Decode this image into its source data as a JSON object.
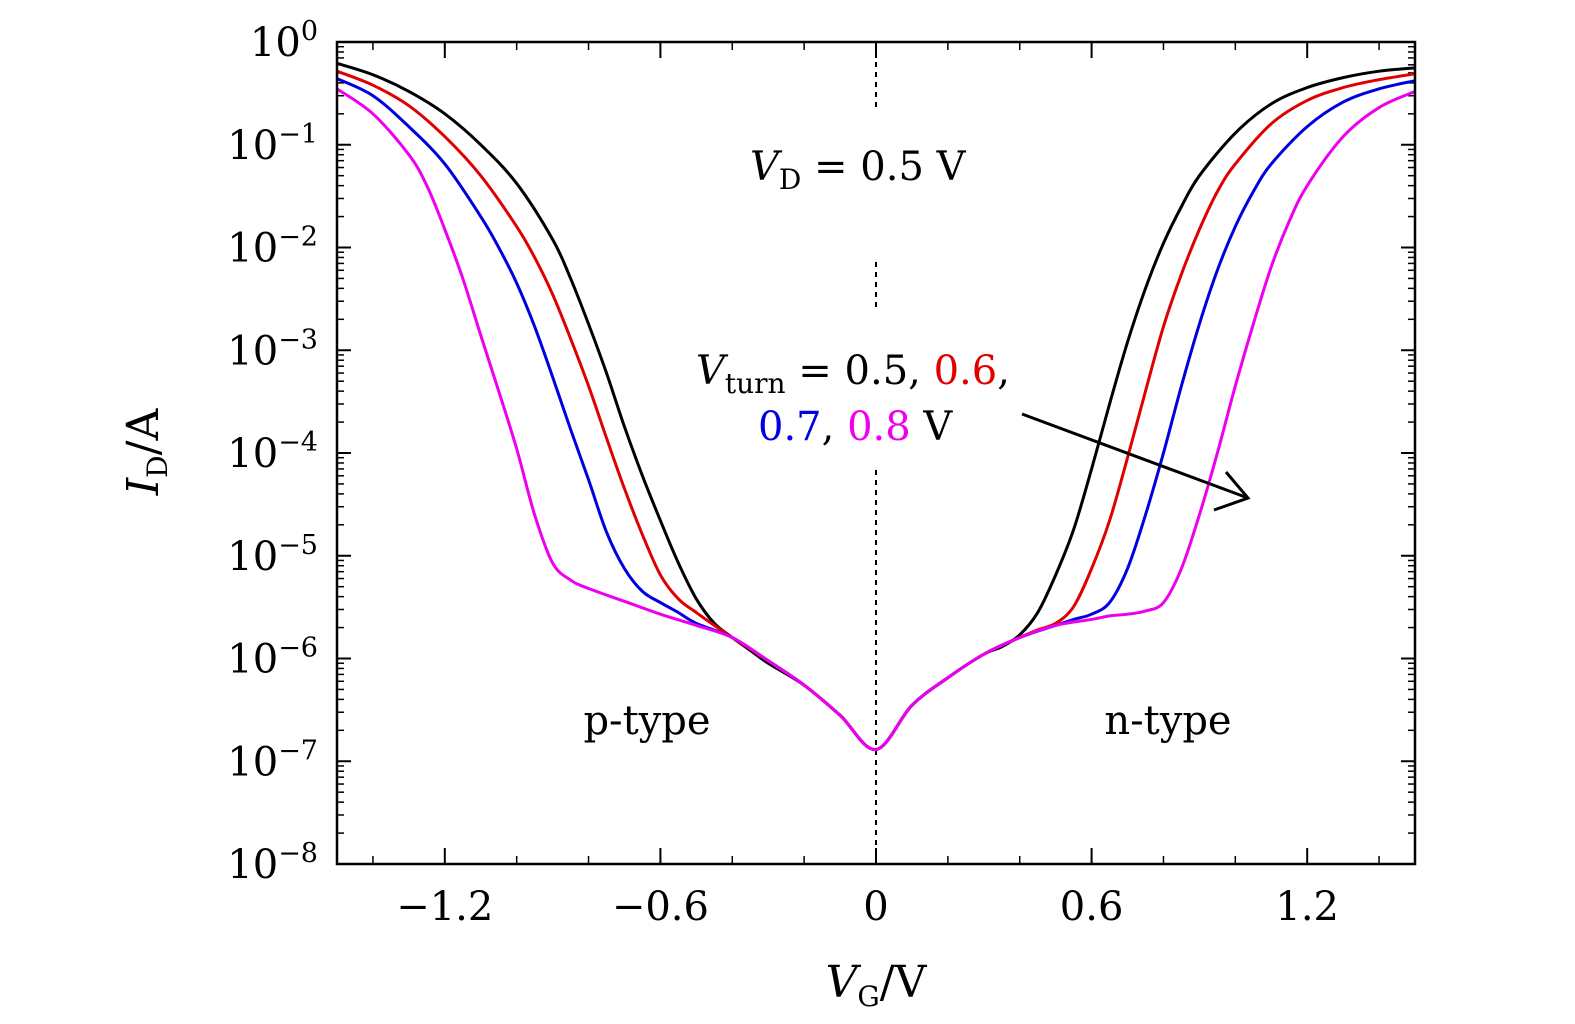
{
  "chart_data": {
    "type": "line",
    "xlabel": {
      "main": "V",
      "sub": "G",
      "unit": "/V"
    },
    "ylabel": {
      "main": "I",
      "sub": "D",
      "unit": "/A"
    },
    "xlim": [
      -1.5,
      1.5
    ],
    "ylim": [
      1e-08,
      1
    ],
    "yscale": "log",
    "x_ticks": [
      {
        "value": -1.2,
        "label": "−1.2"
      },
      {
        "value": -0.6,
        "label": "−0.6"
      },
      {
        "value": 0,
        "label": "0"
      },
      {
        "value": 0.6,
        "label": "0.6"
      },
      {
        "value": 1.2,
        "label": "1.2"
      }
    ],
    "y_ticks": [
      {
        "value": 1,
        "base": "10",
        "exp": "0"
      },
      {
        "value": 0.1,
        "base": "10",
        "exp": "−1"
      },
      {
        "value": 0.01,
        "base": "10",
        "exp": "−2"
      },
      {
        "value": 0.001,
        "base": "10",
        "exp": "−3"
      },
      {
        "value": 0.0001,
        "base": "10",
        "exp": "−4"
      },
      {
        "value": 1e-05,
        "base": "10",
        "exp": "−5"
      },
      {
        "value": 1e-06,
        "base": "10",
        "exp": "−6"
      },
      {
        "value": 1e-07,
        "base": "10",
        "exp": "−7"
      },
      {
        "value": 1e-08,
        "base": "10",
        "exp": "−8"
      }
    ],
    "grid": false,
    "vertical_reference_line": {
      "x": 0,
      "style": "dashed"
    },
    "series": [
      {
        "color": "#000000",
        "x": [
          -1.5,
          -1.4,
          -1.3,
          -1.2,
          -1.1,
          -1.0,
          -0.9,
          -0.85,
          -0.8,
          -0.75,
          -0.7,
          -0.65,
          -0.6,
          -0.55,
          -0.5,
          -0.45,
          -0.4,
          -0.35,
          -0.3,
          -0.2,
          -0.1,
          0,
          0.1,
          0.2,
          0.3,
          0.35,
          0.4,
          0.45,
          0.5,
          0.55,
          0.6,
          0.65,
          0.7,
          0.75,
          0.8,
          0.85,
          0.9,
          1.0,
          1.1,
          1.2,
          1.3,
          1.4,
          1.5
        ],
        "y": [
          0.62,
          0.48,
          0.33,
          0.2,
          0.1,
          0.042,
          0.012,
          0.005,
          0.0018,
          0.0006,
          0.00018,
          6e-05,
          2.2e-05,
          8.5e-06,
          3.8e-06,
          2.2e-06,
          1.6e-06,
          1.2e-06,
          9e-07,
          5.5e-07,
          2.8e-07,
          1.3e-07,
          3.5e-07,
          6.5e-07,
          1.1e-06,
          1.3e-06,
          1.7e-06,
          2.8e-06,
          6.5e-06,
          1.8e-05,
          7e-05,
          0.0003,
          0.0012,
          0.004,
          0.011,
          0.025,
          0.05,
          0.13,
          0.25,
          0.36,
          0.45,
          0.52,
          0.56
        ]
      },
      {
        "color": "#e00000",
        "x": [
          -1.5,
          -1.4,
          -1.3,
          -1.2,
          -1.1,
          -1.0,
          -0.95,
          -0.9,
          -0.85,
          -0.8,
          -0.75,
          -0.7,
          -0.65,
          -0.6,
          -0.55,
          -0.5,
          -0.45,
          -0.4,
          -0.3,
          -0.2,
          -0.1,
          0,
          0.1,
          0.2,
          0.3,
          0.4,
          0.45,
          0.5,
          0.55,
          0.6,
          0.65,
          0.7,
          0.75,
          0.8,
          0.85,
          0.9,
          0.95,
          1.0,
          1.1,
          1.2,
          1.3,
          1.4,
          1.5
        ],
        "y": [
          0.52,
          0.38,
          0.24,
          0.12,
          0.05,
          0.016,
          0.008,
          0.0035,
          0.0013,
          0.00045,
          0.00014,
          4.5e-05,
          1.6e-05,
          6.5e-06,
          3.8e-06,
          2.8e-06,
          2.1e-06,
          1.6e-06,
          9.5e-07,
          5.5e-07,
          2.8e-07,
          1.3e-07,
          3.5e-07,
          6.5e-07,
          1.1e-06,
          1.6e-06,
          1.9e-06,
          2.2e-06,
          3.2e-06,
          7.5e-06,
          2.2e-05,
          9e-05,
          0.0004,
          0.0017,
          0.0055,
          0.015,
          0.035,
          0.065,
          0.16,
          0.27,
          0.36,
          0.43,
          0.49
        ]
      },
      {
        "color": "#0000e0",
        "x": [
          -1.5,
          -1.4,
          -1.3,
          -1.2,
          -1.1,
          -1.05,
          -1.0,
          -0.95,
          -0.9,
          -0.85,
          -0.8,
          -0.75,
          -0.7,
          -0.65,
          -0.6,
          -0.55,
          -0.5,
          -0.4,
          -0.3,
          -0.2,
          -0.1,
          0,
          0.1,
          0.2,
          0.3,
          0.4,
          0.5,
          0.55,
          0.6,
          0.65,
          0.7,
          0.75,
          0.8,
          0.85,
          0.9,
          0.95,
          1.0,
          1.05,
          1.1,
          1.2,
          1.3,
          1.4,
          1.5
        ],
        "y": [
          0.44,
          0.3,
          0.15,
          0.065,
          0.02,
          0.01,
          0.0045,
          0.0017,
          0.00055,
          0.00017,
          5.5e-05,
          1.7e-05,
          7.5e-06,
          4.5e-06,
          3.5e-06,
          2.8e-06,
          2.2e-06,
          1.6e-06,
          9.5e-07,
          5.5e-07,
          2.8e-07,
          1.3e-07,
          3.5e-07,
          6.5e-07,
          1.1e-06,
          1.6e-06,
          2.1e-06,
          2.4e-06,
          2.7e-06,
          3.5e-06,
          7.5e-06,
          2.5e-05,
          0.0001,
          0.00045,
          0.0018,
          0.006,
          0.016,
          0.035,
          0.065,
          0.15,
          0.26,
          0.35,
          0.42
        ]
      },
      {
        "color": "#ee00ee",
        "x": [
          -1.5,
          -1.4,
          -1.3,
          -1.25,
          -1.2,
          -1.15,
          -1.1,
          -1.05,
          -1.0,
          -0.95,
          -0.9,
          -0.85,
          -0.8,
          -0.7,
          -0.6,
          -0.5,
          -0.4,
          -0.3,
          -0.2,
          -0.1,
          0,
          0.1,
          0.2,
          0.3,
          0.4,
          0.5,
          0.6,
          0.65,
          0.7,
          0.75,
          0.8,
          0.85,
          0.9,
          0.95,
          1.0,
          1.05,
          1.1,
          1.15,
          1.2,
          1.3,
          1.4,
          1.5
        ],
        "y": [
          0.35,
          0.2,
          0.08,
          0.04,
          0.015,
          0.005,
          0.0014,
          0.0004,
          0.00011,
          2.5e-05,
          8.5e-06,
          5.8e-06,
          4.8e-06,
          3.6e-06,
          2.7e-06,
          2.1e-06,
          1.6e-06,
          9.5e-07,
          5.5e-07,
          2.8e-07,
          1.3e-07,
          3.5e-07,
          6.5e-07,
          1.1e-06,
          1.6e-06,
          2.1e-06,
          2.4e-06,
          2.6e-06,
          2.7e-06,
          2.9e-06,
          3.5e-06,
          7.5e-06,
          2.5e-05,
          0.0001,
          0.00045,
          0.0018,
          0.0065,
          0.018,
          0.04,
          0.12,
          0.23,
          0.33
        ]
      }
    ],
    "annotations": {
      "vd": {
        "main": "V",
        "sub": "D",
        "rest": " = 0.5 V"
      },
      "vturn": {
        "main": "V",
        "sub": "turn",
        "eq": " = ",
        "v1": "0.5",
        "c1": ", ",
        "v2": "0.6",
        "c2": ",",
        "v3": "0.7",
        "c3": ", ",
        "v4": "0.8",
        "unit": " V",
        "colors": [
          "#000000",
          "#e00000",
          "#0000e0",
          "#ee00ee"
        ]
      },
      "p_type": "p-type",
      "n_type": "n-type"
    }
  }
}
